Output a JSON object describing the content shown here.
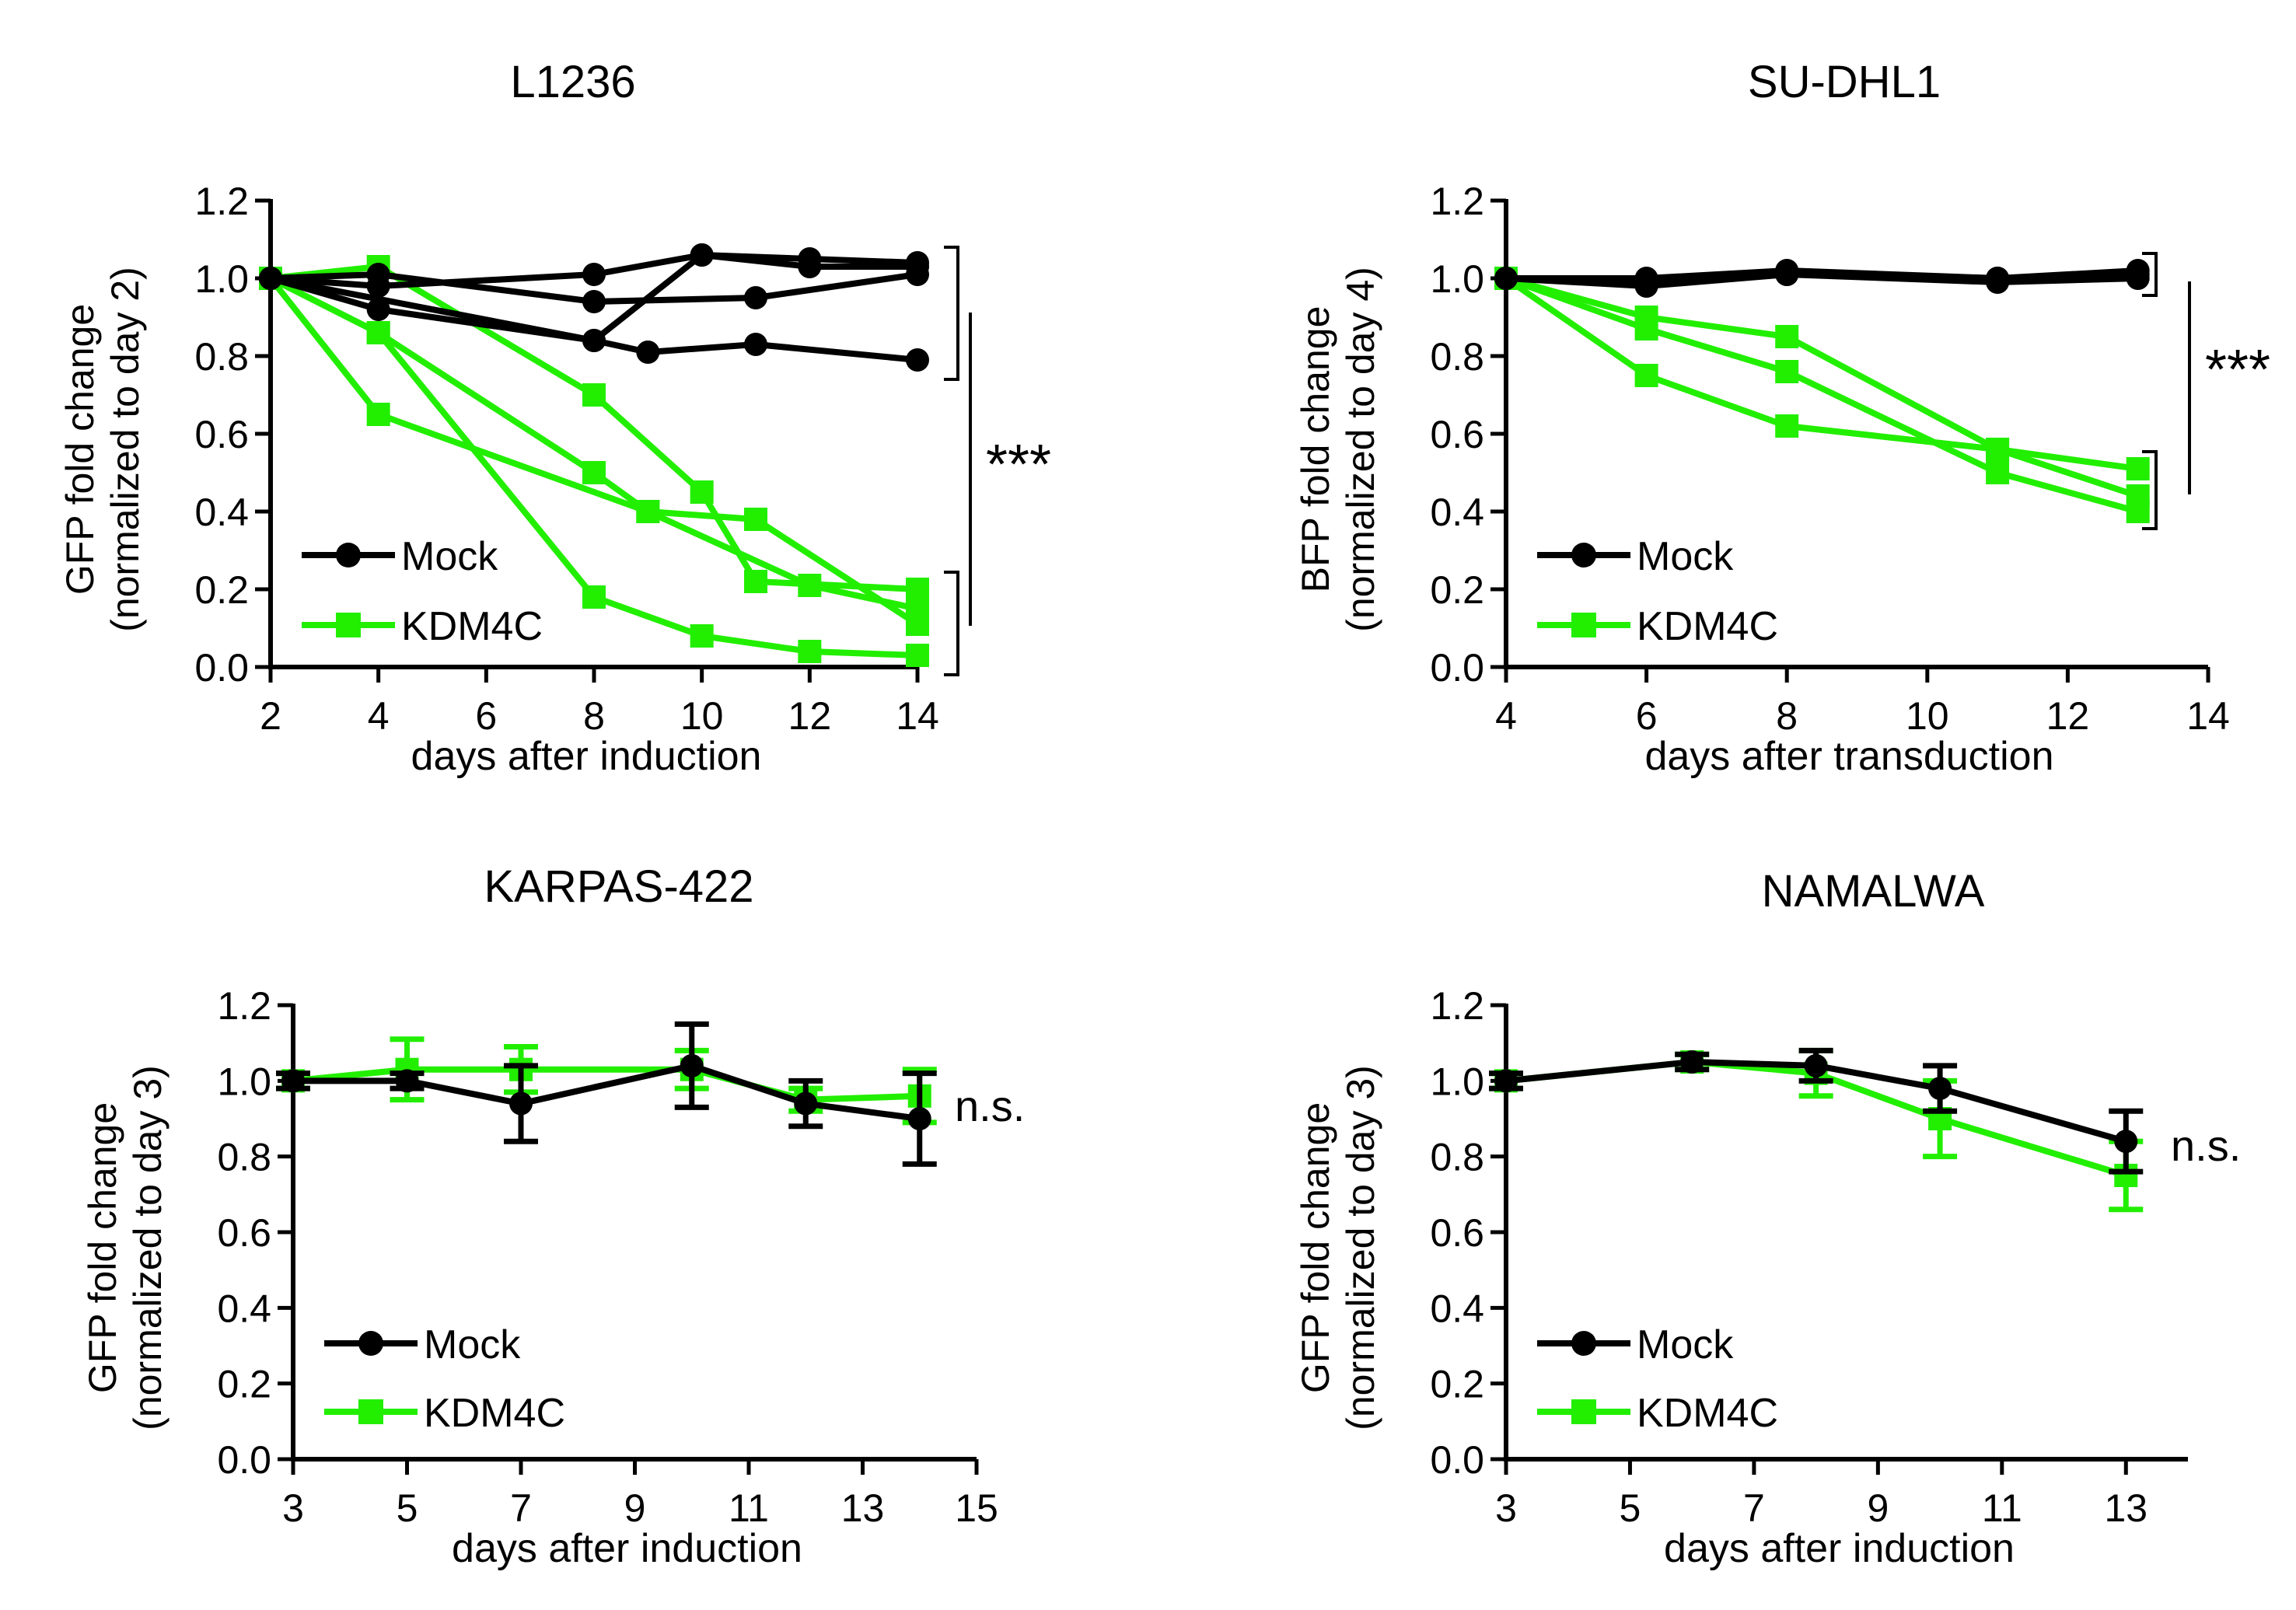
{
  "colors": {
    "mock": "#000000",
    "kdm4c": "#22ee00"
  },
  "chart_data": [
    {
      "type": "line",
      "title": "L1236",
      "xlabel": "days after induction",
      "ylabel": [
        "GFP fold change",
        "(normalized to day 2)"
      ],
      "xlim": [
        2,
        14
      ],
      "xticks": [
        2,
        4,
        6,
        8,
        10,
        12,
        14
      ],
      "ylim": [
        0,
        1.2
      ],
      "yticks": [
        0.0,
        0.2,
        0.4,
        0.6,
        0.8,
        1.0,
        1.2
      ],
      "tick_format": 1,
      "grid": false,
      "legend": {
        "position": "bottom-left",
        "entries": [
          "Mock",
          "KDM4C"
        ]
      },
      "series": [
        {
          "group": "Mock",
          "marker": "circle",
          "points": [
            [
              2,
              1.0
            ],
            [
              4,
              0.98
            ],
            [
              8,
              1.01
            ],
            [
              10,
              1.06
            ],
            [
              12,
              1.05
            ],
            [
              14,
              1.04
            ]
          ]
        },
        {
          "group": "Mock",
          "marker": "circle",
          "points": [
            [
              2,
              1.0
            ],
            [
              4,
              1.01
            ],
            [
              8,
              0.94
            ],
            [
              11,
              0.95
            ],
            [
              14,
              1.01
            ]
          ]
        },
        {
          "group": "Mock",
          "marker": "circle",
          "points": [
            [
              2,
              1.0
            ],
            [
              4,
              0.92
            ],
            [
              8,
              0.84
            ],
            [
              10,
              1.06
            ],
            [
              12,
              1.03
            ],
            [
              14,
              1.03
            ]
          ]
        },
        {
          "group": "Mock",
          "marker": "circle",
          "points": [
            [
              2,
              1.0
            ],
            [
              8,
              0.84
            ],
            [
              9,
              0.81
            ],
            [
              11,
              0.83
            ],
            [
              14,
              0.79
            ]
          ]
        },
        {
          "group": "KDM4C",
          "marker": "square",
          "points": [
            [
              2,
              1.0
            ],
            [
              4,
              1.03
            ],
            [
              8,
              0.7
            ],
            [
              10,
              0.45
            ],
            [
              11,
              0.22
            ],
            [
              14,
              0.2
            ]
          ]
        },
        {
          "group": "KDM4C",
          "marker": "square",
          "points": [
            [
              2,
              1.0
            ],
            [
              4,
              0.86
            ],
            [
              8,
              0.5
            ],
            [
              9,
              0.4
            ],
            [
              12,
              0.21
            ],
            [
              14,
              0.15
            ]
          ]
        },
        {
          "group": "KDM4C",
          "marker": "square",
          "points": [
            [
              2,
              1.0
            ],
            [
              4,
              0.65
            ],
            [
              9,
              0.4
            ],
            [
              11,
              0.38
            ],
            [
              14,
              0.11
            ]
          ]
        },
        {
          "group": "KDM4C",
          "marker": "square",
          "points": [
            [
              2,
              1.0
            ],
            [
              4,
              0.86
            ],
            [
              8,
              0.18
            ],
            [
              10,
              0.08
            ],
            [
              12,
              0.04
            ],
            [
              14,
              0.03
            ]
          ]
        }
      ],
      "annotations": {
        "significance": "***"
      }
    },
    {
      "type": "line",
      "title": "SU-DHL1",
      "xlabel": "days after transduction",
      "ylabel": [
        "BFP fold change",
        "(normalized to day 4)"
      ],
      "xlim": [
        4,
        14
      ],
      "xticks": [
        4,
        6,
        8,
        10,
        12,
        14
      ],
      "ylim": [
        0,
        1.2
      ],
      "yticks": [
        0.0,
        0.2,
        0.4,
        0.6,
        0.8,
        1.0,
        1.2
      ],
      "tick_format": 1,
      "grid": false,
      "legend": {
        "position": "bottom-left",
        "entries": [
          "Mock",
          "KDM4C"
        ]
      },
      "series": [
        {
          "group": "Mock",
          "marker": "circle",
          "points": [
            [
              4,
              1.0
            ],
            [
              6,
              0.99
            ],
            [
              8,
              1.01
            ],
            [
              11,
              1.0
            ],
            [
              13,
              1.01
            ]
          ]
        },
        {
          "group": "Mock",
          "marker": "circle",
          "points": [
            [
              4,
              1.0
            ],
            [
              6,
              0.98
            ],
            [
              8,
              1.01
            ],
            [
              11,
              0.99
            ],
            [
              13,
              1.0
            ]
          ]
        },
        {
          "group": "Mock",
          "marker": "circle",
          "points": [
            [
              4,
              1.0
            ],
            [
              6,
              1.0
            ],
            [
              8,
              1.02
            ],
            [
              11,
              1.0
            ],
            [
              13,
              1.02
            ]
          ]
        },
        {
          "group": "KDM4C",
          "marker": "square",
          "points": [
            [
              4,
              1.0
            ],
            [
              6,
              0.9
            ],
            [
              8,
              0.85
            ],
            [
              11,
              0.56
            ],
            [
              13,
              0.44
            ]
          ]
        },
        {
          "group": "KDM4C",
          "marker": "square",
          "points": [
            [
              4,
              1.0
            ],
            [
              6,
              0.87
            ],
            [
              8,
              0.76
            ],
            [
              11,
              0.5
            ],
            [
              13,
              0.4
            ]
          ]
        },
        {
          "group": "KDM4C",
          "marker": "square",
          "points": [
            [
              4,
              1.0
            ],
            [
              6,
              0.75
            ],
            [
              8,
              0.62
            ],
            [
              11,
              0.56
            ],
            [
              13,
              0.51
            ]
          ]
        }
      ],
      "annotations": {
        "significance": "***"
      }
    },
    {
      "type": "line",
      "title": "KARPAS-422",
      "xlabel": "days after induction",
      "ylabel": [
        "GFP fold change",
        "(normalized to day 3)"
      ],
      "xlim": [
        3,
        15
      ],
      "xticks": [
        3,
        5,
        7,
        9,
        11,
        13,
        15
      ],
      "ylim": [
        0,
        1.2
      ],
      "yticks": [
        0.0,
        0.2,
        0.4,
        0.6,
        0.8,
        1.0,
        1.2
      ],
      "tick_format": 1,
      "grid": false,
      "legend": {
        "position": "bottom-left",
        "entries": [
          "Mock",
          "KDM4C"
        ]
      },
      "series": [
        {
          "group": "KDM4C",
          "marker": "square",
          "points": [
            [
              3,
              1.0,
              0.02
            ],
            [
              5,
              1.03,
              0.08
            ],
            [
              7,
              1.03,
              0.06
            ],
            [
              10,
              1.03,
              0.05
            ],
            [
              12,
              0.95,
              0.03
            ],
            [
              14,
              0.96,
              0.07
            ]
          ]
        },
        {
          "group": "Mock",
          "marker": "circle",
          "points": [
            [
              3,
              1.0,
              0.02
            ],
            [
              5,
              1.0,
              0.02
            ],
            [
              7,
              0.94,
              0.1
            ],
            [
              10,
              1.04,
              0.11
            ],
            [
              12,
              0.94,
              0.06
            ],
            [
              14,
              0.9,
              0.12
            ]
          ]
        }
      ],
      "annotations": {
        "significance": "n.s."
      }
    },
    {
      "type": "line",
      "title": "NAMALWA",
      "xlabel": "days after induction",
      "ylabel": [
        "GFP fold change",
        "(normalized to day 3)"
      ],
      "xlim": [
        3,
        14
      ],
      "xticks": [
        3,
        5,
        7,
        9,
        11,
        13
      ],
      "ylim": [
        0,
        1.2
      ],
      "yticks": [
        0.0,
        0.2,
        0.4,
        0.6,
        0.8,
        1.0,
        1.2
      ],
      "tick_format": 1,
      "grid": false,
      "legend": {
        "position": "bottom-left",
        "entries": [
          "Mock",
          "KDM4C"
        ]
      },
      "series": [
        {
          "group": "KDM4C",
          "marker": "square",
          "points": [
            [
              3,
              1.0,
              0.02
            ],
            [
              6,
              1.05,
              0.02
            ],
            [
              8,
              1.02,
              0.06
            ],
            [
              10,
              0.9,
              0.1
            ],
            [
              13,
              0.75,
              0.09
            ]
          ]
        },
        {
          "group": "Mock",
          "marker": "circle",
          "points": [
            [
              3,
              1.0,
              0.02
            ],
            [
              6,
              1.05,
              0.02
            ],
            [
              8,
              1.04,
              0.04
            ],
            [
              10,
              0.98,
              0.06
            ],
            [
              13,
              0.84,
              0.08
            ]
          ]
        }
      ],
      "annotations": {
        "significance": "n.s."
      }
    }
  ]
}
